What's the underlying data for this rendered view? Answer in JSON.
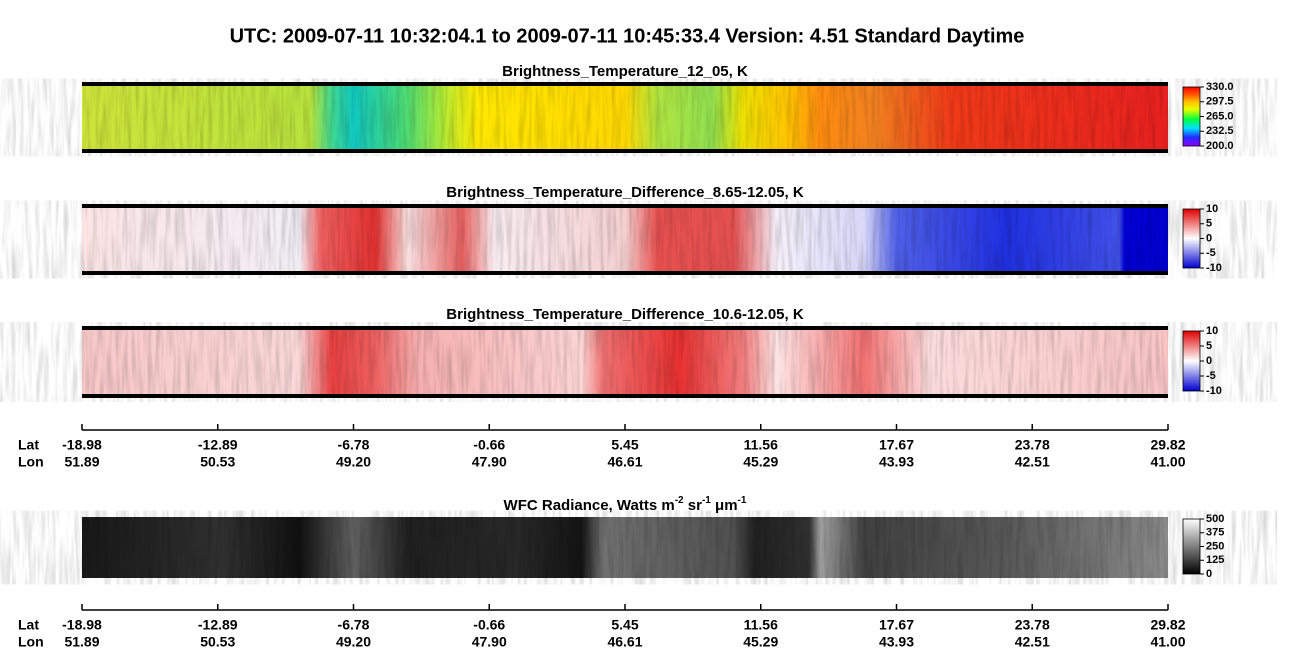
{
  "title": "UTC:  2009-07-11   10:32:04.1  to  2009-07-11   10:45:33.4    Version: 4.51  Standard Daytime",
  "chart_data": [
    {
      "type": "image",
      "title": "Brightness_Temperature_12_05, K",
      "colormap": "rainbow",
      "zlim": [
        200,
        330
      ],
      "zticks": [
        {
          "value": 330,
          "label": "330.0"
        },
        297.5,
        {
          "value": 265,
          "label": "265.0"
        },
        232.5,
        {
          "value": 200,
          "label": "200.0"
        }
      ]
    },
    {
      "type": "image",
      "title": "Brightness_Temperature_Difference_8.65-12.05, K",
      "colormap": "bwr",
      "zlim": [
        -10,
        10
      ],
      "zticks": [
        10,
        5,
        0,
        -5,
        -10
      ]
    },
    {
      "type": "image",
      "title": "Brightness_Temperature_Difference_10.6-12.05, K",
      "colormap": "bwr",
      "zlim": [
        -10,
        10
      ],
      "zticks": [
        10,
        5,
        0,
        -5,
        -10
      ]
    },
    {
      "type": "image",
      "title_parts": [
        {
          "text": "WFC Radiance, Watts m"
        },
        {
          "text": "-2",
          "sup": true
        },
        {
          "text": " sr"
        },
        {
          "text": "-1",
          "sup": true
        },
        {
          "text": " μm"
        },
        {
          "text": "-1",
          "sup": true
        }
      ],
      "colormap": "gray",
      "zlim": [
        0,
        500
      ],
      "zticks": [
        500,
        375,
        250,
        125,
        0
      ]
    }
  ],
  "axes": [
    {
      "rows": [
        {
          "name": "Lat",
          "ticks": [
            "-18.98",
            "-12.89",
            "-6.78",
            "-0.66",
            "5.45",
            "11.56",
            "17.67",
            "23.78",
            "29.82"
          ]
        },
        {
          "name": "Lon",
          "ticks": [
            "51.89",
            "50.53",
            "49.20",
            "47.90",
            "46.61",
            "45.29",
            "43.93",
            "42.51",
            "41.00"
          ]
        }
      ]
    },
    {
      "rows": [
        {
          "name": "Lat",
          "ticks": [
            "-18.98",
            "-12.89",
            "-6.78",
            "-0.66",
            "5.45",
            "11.56",
            "17.67",
            "23.78",
            "29.82"
          ]
        },
        {
          "name": "Lon",
          "ticks": [
            "51.89",
            "50.53",
            "49.20",
            "47.90",
            "46.61",
            "45.29",
            "43.93",
            "42.51",
            "41.00"
          ]
        }
      ]
    }
  ]
}
